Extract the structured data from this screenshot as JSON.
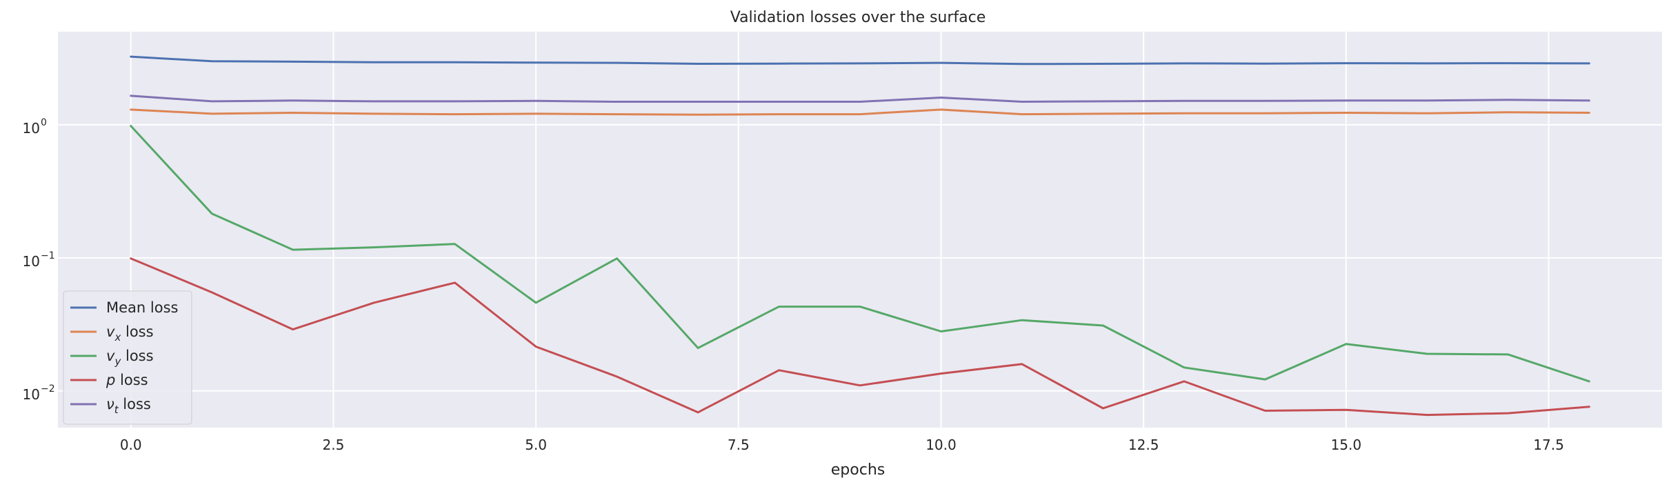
{
  "chart_data": {
    "type": "line",
    "title": "Validation losses over the surface",
    "xlabel": "epochs",
    "ylabel": "",
    "yscale": "log",
    "xlim": [
      -0.9,
      18.9
    ],
    "ylim": [
      0.0053,
      5.0
    ],
    "grid": true,
    "legend_position": "lower-left",
    "x": [
      0,
      1,
      2,
      3,
      4,
      5,
      6,
      7,
      8,
      9,
      10,
      11,
      12,
      13,
      14,
      15,
      16,
      17,
      18
    ],
    "x_ticks": [
      0.0,
      2.5,
      5.0,
      7.5,
      10.0,
      12.5,
      15.0,
      17.5
    ],
    "x_tick_labels": [
      "0.0",
      "2.5",
      "5.0",
      "7.5",
      "10.0",
      "12.5",
      "15.0",
      "17.5"
    ],
    "y_ticks": [
      1,
      0.1,
      0.01
    ],
    "y_tick_labels": [
      {
        "base": "10",
        "exp": "0"
      },
      {
        "base": "10",
        "exp": "−1"
      },
      {
        "base": "10",
        "exp": "−2"
      }
    ],
    "series": [
      {
        "name": "Mean loss",
        "legend": {
          "pre": "",
          "sym": "",
          "sub": "",
          "post": "Mean loss"
        },
        "color": "#4c72b0",
        "values": [
          3.25,
          3.0,
          2.98,
          2.95,
          2.95,
          2.93,
          2.92,
          2.87,
          2.88,
          2.89,
          2.92,
          2.86,
          2.87,
          2.89,
          2.88,
          2.9,
          2.89,
          2.9,
          2.89
        ]
      },
      {
        "name": "v_x loss",
        "legend": {
          "pre": "",
          "sym": "v",
          "sub": "x",
          "post": " loss"
        },
        "color": "#dd8452",
        "values": [
          1.3,
          1.21,
          1.23,
          1.21,
          1.2,
          1.21,
          1.2,
          1.19,
          1.2,
          1.2,
          1.3,
          1.2,
          1.21,
          1.22,
          1.22,
          1.23,
          1.22,
          1.24,
          1.23
        ]
      },
      {
        "name": "v_y loss",
        "legend": {
          "pre": "",
          "sym": "v",
          "sub": "y",
          "post": " loss"
        },
        "color": "#55a868",
        "values": [
          0.98,
          0.215,
          0.115,
          0.12,
          0.127,
          0.046,
          0.099,
          0.021,
          0.043,
          0.043,
          0.028,
          0.034,
          0.031,
          0.015,
          0.0122,
          0.0225,
          0.019,
          0.0188,
          0.0118
        ]
      },
      {
        "name": "p loss",
        "legend": {
          "pre": "",
          "sym": "p",
          "sub": "",
          "post": " loss"
        },
        "color": "#c44e52",
        "values": [
          0.099,
          0.055,
          0.029,
          0.046,
          0.065,
          0.0215,
          0.0128,
          0.0069,
          0.0143,
          0.011,
          0.0135,
          0.0159,
          0.0074,
          0.0118,
          0.0071,
          0.0072,
          0.0066,
          0.0068,
          0.0076
        ]
      },
      {
        "name": "ν_t loss",
        "legend": {
          "pre": "",
          "sym": "ν",
          "sub": "t",
          "post": " loss"
        },
        "color": "#8172b3",
        "values": [
          1.65,
          1.5,
          1.52,
          1.5,
          1.5,
          1.51,
          1.49,
          1.49,
          1.49,
          1.49,
          1.6,
          1.49,
          1.5,
          1.51,
          1.51,
          1.52,
          1.52,
          1.54,
          1.52
        ]
      }
    ]
  }
}
